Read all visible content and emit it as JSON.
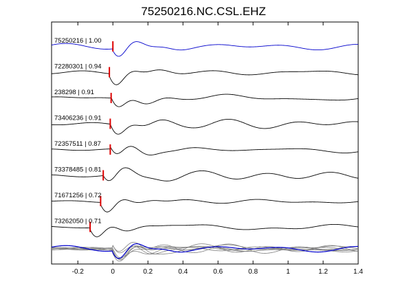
{
  "chart_data": {
    "type": "line",
    "title": "75250216.NC.CSL.EHZ",
    "xlabel": "",
    "ylabel": "",
    "xlim": [
      -0.35,
      1.4
    ],
    "x_ticks": [
      -0.2,
      0,
      0.2,
      0.4,
      0.6,
      0.8,
      1,
      1.2,
      1.4
    ],
    "x_tick_labels": [
      "-0.2",
      "0",
      "0.2",
      "0.4",
      "0.6",
      "0.8",
      "1",
      "1.2",
      "1.4"
    ],
    "grid": false,
    "legend": "none",
    "colors": {
      "reference": "#0000cc",
      "trace": "#000000",
      "pick": "#dd0000",
      "stack": "#808080"
    },
    "traces": [
      {
        "label": "75250216 | 1.00",
        "event": "75250216",
        "cc": 1.0,
        "pick_time": 0.0,
        "reference": true
      },
      {
        "label": "72280301 | 0.94",
        "event": "72280301",
        "cc": 0.94,
        "pick_time": -0.02
      },
      {
        "label": "238298 | 0.91",
        "event": "238298",
        "cc": 0.91,
        "pick_time": -0.01
      },
      {
        "label": "73406236 | 0.91",
        "event": "73406236",
        "cc": 0.91,
        "pick_time": -0.015
      },
      {
        "label": "72357511 | 0.87",
        "event": "72357511",
        "cc": 0.87,
        "pick_time": -0.015
      },
      {
        "label": "73378485 | 0.81",
        "event": "73378485",
        "cc": 0.81,
        "pick_time": -0.055
      },
      {
        "label": "71671256 | 0.72",
        "event": "71671256",
        "cc": 0.72,
        "pick_time": -0.07
      },
      {
        "label": "73262050 | 0.71",
        "event": "73262050",
        "cc": 0.71,
        "pick_time": -0.13
      }
    ],
    "overlay": {
      "reference_index": 0
    }
  }
}
